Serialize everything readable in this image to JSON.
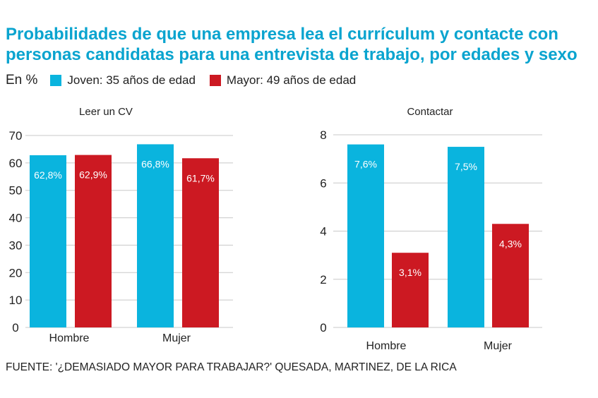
{
  "title": "Probabilidades de que una empresa lea el currículum y contacte con personas candidatas para una entrevista de trabajo, por edades y sexo",
  "legend": {
    "unit": "En %",
    "items": [
      {
        "label": "Joven: 35 años de edad",
        "color": "#0ab4de"
      },
      {
        "label": "Mayor: 49 años de edad",
        "color": "#cc1922"
      }
    ]
  },
  "chart_data": [
    {
      "type": "bar",
      "title": "Leer un CV",
      "categories": [
        "Hombre",
        "Mujer"
      ],
      "series": [
        {
          "name": "Joven: 35 años de edad",
          "color": "#0ab4de",
          "values": [
            62.8,
            66.8
          ],
          "labels": [
            "62,8%",
            "66,8%"
          ]
        },
        {
          "name": "Mayor: 49 años de edad",
          "color": "#cc1922",
          "values": [
            62.9,
            61.7
          ],
          "labels": [
            "62,9%",
            "61,7%"
          ]
        }
      ],
      "ylim": [
        0,
        70
      ],
      "yticks": [
        0,
        10,
        20,
        30,
        40,
        50,
        60,
        70
      ],
      "bar_bottom_value": 0,
      "grid": true
    },
    {
      "type": "bar",
      "title": "Contactar",
      "categories": [
        "Hombre",
        "Mujer"
      ],
      "series": [
        {
          "name": "Joven: 35 años de edad",
          "color": "#0ab4de",
          "values": [
            7.6,
            7.5
          ],
          "labels": [
            "7,6%",
            "7,5%"
          ]
        },
        {
          "name": "Mayor: 49 años de edad",
          "color": "#cc1922",
          "values": [
            3.1,
            4.3
          ],
          "labels": [
            "3,1%",
            "4,3%"
          ]
        }
      ],
      "ylim": [
        0,
        8
      ],
      "yticks": [
        0,
        2,
        4,
        6,
        8
      ],
      "bar_bottom_value": 0,
      "grid": true
    }
  ],
  "source": "FUENTE: '¿DEMASIADO MAYOR PARA TRABAJAR?' QUESADA, MARTINEZ, DE LA RICA"
}
